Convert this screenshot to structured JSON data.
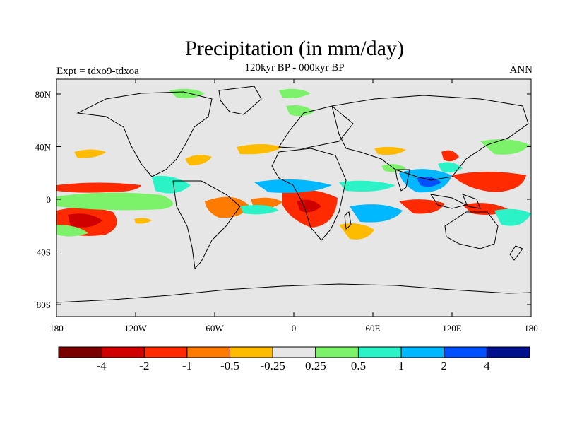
{
  "figure": {
    "title": "Precipitation (in mm/day)",
    "subtitle": "120kyr BP - 000kyr BP",
    "left_label": "Expt = tdxo9-tdxoa",
    "right_label": "ANN"
  },
  "map": {
    "x_ticks": [
      "180",
      "120W",
      "60W",
      "0",
      "60E",
      "120E",
      "180"
    ],
    "y_ticks": [
      "80N",
      "40N",
      "0",
      "40S",
      "80S"
    ],
    "ocean_color": "#e6e6e6"
  },
  "colorbar": {
    "colors": [
      "#7a0000",
      "#d10000",
      "#ff2a00",
      "#ff7a00",
      "#ffbb00",
      "#e6e6e6",
      "#7cf26a",
      "#2cf2c8",
      "#00b8ff",
      "#0050ff",
      "#000f8c"
    ],
    "labels": [
      "-4",
      "-2",
      "-1",
      "-0.5",
      "-0.25",
      "0.25",
      "0.5",
      "1",
      "2",
      "4"
    ]
  }
}
